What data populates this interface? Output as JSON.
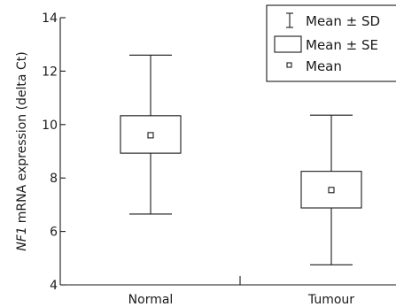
{
  "chart_data": {
    "type": "box",
    "title": "",
    "xlabel": "",
    "ylabel": {
      "gene": "NF1",
      "rest": "mRNA expression (delta Ct)"
    },
    "ylim": [
      4,
      14
    ],
    "yticks": [
      "4",
      "6",
      "8",
      "10",
      "12",
      "14"
    ],
    "categories": [
      "Normal",
      "Tumour"
    ],
    "series": [
      {
        "category": "Normal",
        "mean": 9.6,
        "se_low": 8.93,
        "se_high": 10.33,
        "sd_low": 6.65,
        "sd_high": 12.6
      },
      {
        "category": "Tumour",
        "mean": 7.55,
        "se_low": 6.88,
        "se_high": 8.25,
        "sd_low": 4.75,
        "sd_high": 10.35
      }
    ],
    "legend": {
      "position": "top-right",
      "entries": [
        {
          "symbol": "whisker",
          "label": "Mean ± SD"
        },
        {
          "symbol": "box",
          "label": "Mean ± SE"
        },
        {
          "symbol": "point",
          "label": "Mean"
        }
      ]
    }
  }
}
